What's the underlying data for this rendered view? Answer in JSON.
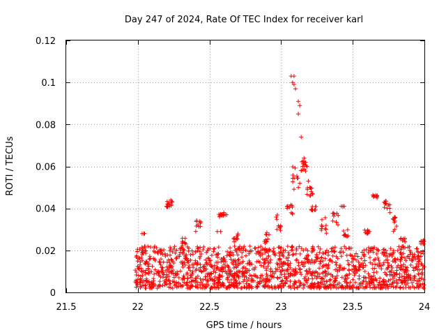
{
  "chart_data": {
    "type": "scatter",
    "title": "Day 247 of 2024, Rate Of TEC Index for receiver karl",
    "xlabel": "GPS time / hours",
    "ylabel": "ROTI / TECUs",
    "xlim": [
      21.5,
      24
    ],
    "ylim": [
      0,
      0.12
    ],
    "x_ticks": [
      21.5,
      22,
      22.5,
      23,
      23.5,
      24
    ],
    "x_tick_labels": [
      "21.5",
      "22",
      "22.5",
      "23",
      "23.5",
      "24"
    ],
    "y_ticks": [
      0,
      0.02,
      0.04,
      0.06,
      0.08,
      0.1,
      0.12
    ],
    "y_tick_labels": [
      "0",
      "0.02",
      "0.04",
      "0.06",
      "0.08",
      "0.1",
      "0.12"
    ],
    "grid": true,
    "marker": "+",
    "color": "#ff0000",
    "series": [
      {
        "name": "ROTI",
        "seed": 247,
        "background": {
          "x_start": 21.98,
          "x_end": 24.0,
          "count": 1500,
          "y_min": 0.002,
          "y_max": 0.022
        },
        "clusters": [
          {
            "x": 22.04,
            "y": 0.019,
            "spread": 0.001
          },
          {
            "x": 22.03,
            "y": 0.028,
            "spread": 0.0
          },
          {
            "x": 22.22,
            "y": 0.042,
            "spread": 0.0015
          },
          {
            "x": 22.32,
            "y": 0.023,
            "spread": 0.003
          },
          {
            "x": 22.42,
            "y": 0.032,
            "spread": 0.003
          },
          {
            "x": 22.58,
            "y": 0.037,
            "spread": 0.0007
          },
          {
            "x": 22.56,
            "y": 0.029,
            "spread": 0.0
          },
          {
            "x": 22.68,
            "y": 0.026,
            "spread": 0.002
          },
          {
            "x": 22.9,
            "y": 0.026,
            "spread": 0.003
          },
          {
            "x": 22.98,
            "y": 0.033,
            "spread": 0.004
          },
          {
            "x": 23.06,
            "y": 0.04,
            "spread": 0.003
          },
          {
            "x": 23.1,
            "y": 0.055,
            "spread": 0.006
          },
          {
            "x": 23.16,
            "y": 0.06,
            "spread": 0.003
          },
          {
            "x": 23.2,
            "y": 0.048,
            "spread": 0.002
          },
          {
            "x": 23.23,
            "y": 0.04,
            "spread": 0.001
          },
          {
            "x": 23.3,
            "y": 0.032,
            "spread": 0.004
          },
          {
            "x": 23.38,
            "y": 0.035,
            "spread": 0.003
          },
          {
            "x": 23.42,
            "y": 0.041,
            "spread": 0.0
          },
          {
            "x": 23.45,
            "y": 0.028,
            "spread": 0.002
          },
          {
            "x": 23.6,
            "y": 0.029,
            "spread": 0.001
          },
          {
            "x": 23.66,
            "y": 0.046,
            "spread": 0.0005
          },
          {
            "x": 23.74,
            "y": 0.042,
            "spread": 0.002
          },
          {
            "x": 23.8,
            "y": 0.032,
            "spread": 0.004
          },
          {
            "x": 23.85,
            "y": 0.023,
            "spread": 0.003
          },
          {
            "x": 23.98,
            "y": 0.024,
            "spread": 0.001
          }
        ],
        "points": [
          [
            23.07,
            0.103
          ],
          [
            23.09,
            0.103
          ],
          [
            23.08,
            0.1
          ],
          [
            23.09,
            0.099
          ],
          [
            23.1,
            0.097
          ],
          [
            23.12,
            0.091
          ],
          [
            23.13,
            0.089
          ],
          [
            23.12,
            0.085
          ],
          [
            23.14,
            0.074
          ],
          [
            23.16,
            0.064
          ],
          [
            23.15,
            0.06
          ],
          [
            23.17,
            0.062
          ],
          [
            23.18,
            0.06
          ],
          [
            23.14,
            0.058
          ],
          [
            23.13,
            0.052
          ],
          [
            23.2,
            0.05
          ],
          [
            23.19,
            0.053
          ],
          [
            23.21,
            0.048
          ],
          [
            23.22,
            0.047
          ],
          [
            23.12,
            0.05
          ],
          [
            22.2,
            0.041
          ],
          [
            22.21,
            0.041
          ],
          [
            22.22,
            0.042
          ],
          [
            22.23,
            0.044
          ],
          [
            22.24,
            0.043
          ],
          [
            22.03,
            0.028
          ],
          [
            22.57,
            0.036
          ],
          [
            22.58,
            0.037
          ],
          [
            22.59,
            0.037
          ],
          [
            22.6,
            0.038
          ],
          [
            22.61,
            0.037
          ],
          [
            22.62,
            0.037
          ],
          [
            23.42,
            0.041
          ],
          [
            23.43,
            0.041
          ],
          [
            23.66,
            0.046
          ],
          [
            23.67,
            0.045
          ],
          [
            23.72,
            0.043
          ],
          [
            23.74,
            0.04
          ],
          [
            23.76,
            0.038
          ],
          [
            23.78,
            0.035
          ]
        ]
      }
    ]
  }
}
